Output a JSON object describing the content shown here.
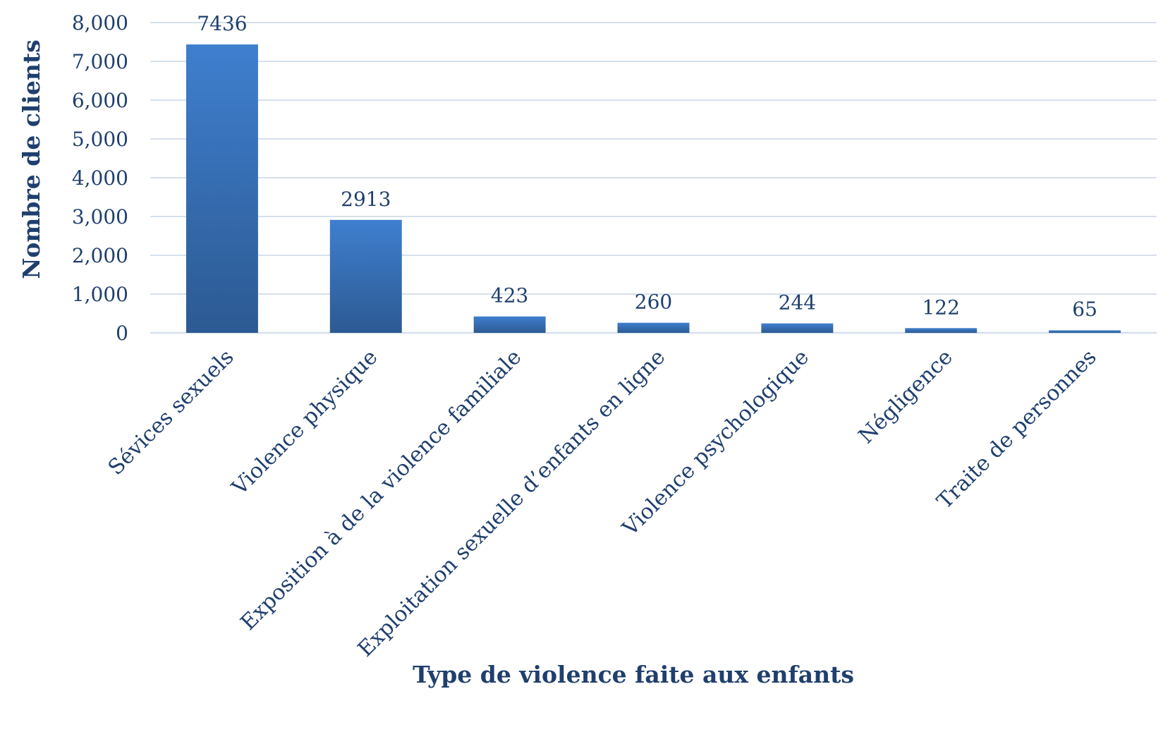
{
  "colors": {
    "bar_top": "#3f7fcf",
    "bar_bottom": "#2c5a92",
    "text": "#1f3f6e",
    "grid": "#d6e0ee"
  },
  "chart_data": {
    "type": "bar",
    "title": "",
    "xlabel": "Type de violence faite aux enfants",
    "ylabel": "Nombre de clients",
    "categories": [
      "Sévices sexuels",
      "Violence physique",
      "Exposition à de la violence familiale",
      "Exploitation sexuelle d’enfants en ligne",
      "Violence psychologique",
      "Négligence",
      "Traite de personnes"
    ],
    "values": [
      7436,
      2913,
      423,
      260,
      244,
      122,
      65
    ],
    "data_labels": [
      "7436",
      "2913",
      "423",
      "260",
      "244",
      "122",
      "65"
    ],
    "ylim": [
      0,
      8000
    ],
    "yticks": [
      0,
      1000,
      2000,
      3000,
      4000,
      5000,
      6000,
      7000,
      8000
    ],
    "ytick_labels": [
      "0",
      "1,000",
      "2,000",
      "3,000",
      "4,000",
      "5,000",
      "6,000",
      "7,000",
      "8,000"
    ],
    "grid": true,
    "legend": "none"
  }
}
